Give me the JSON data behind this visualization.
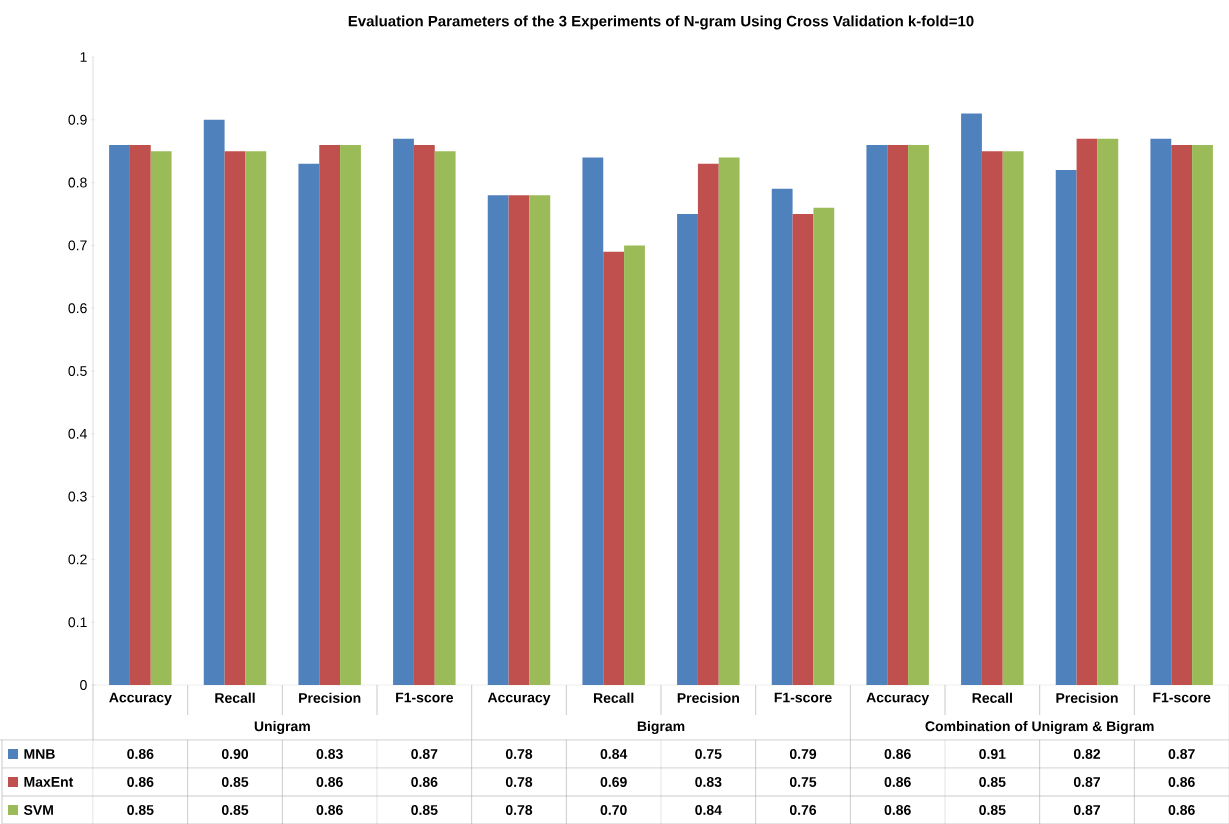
{
  "chart_data": {
    "type": "bar",
    "title": "Evaluation Parameters of the 3 Experiments of N-gram Using Cross Validation k-fold=10",
    "categories": [
      "Accuracy",
      "Recall",
      "Precision",
      "F1-score",
      "Accuracy",
      "Recall",
      "Precision",
      "F1-score",
      "Accuracy",
      "Recall",
      "Precision",
      "F1-score"
    ],
    "annotations": [
      "Unigram",
      "Bigram",
      "Combination of Unigram & Bigram"
    ],
    "series": [
      {
        "name": "MNB",
        "color": "#4f81bd",
        "values": [
          0.86,
          0.9,
          0.83,
          0.87,
          0.78,
          0.84,
          0.75,
          0.79,
          0.86,
          0.91,
          0.82,
          0.87
        ],
        "value_labels": [
          "0.86",
          "0.90",
          "0.83",
          "0.87",
          "0.78",
          "0.84",
          "0.75",
          "0.79",
          "0.86",
          "0.91",
          "0.82",
          "0.87"
        ]
      },
      {
        "name": "MaxEnt",
        "color": "#c0504d",
        "values": [
          0.86,
          0.85,
          0.86,
          0.86,
          0.78,
          0.69,
          0.83,
          0.75,
          0.86,
          0.85,
          0.87,
          0.86
        ],
        "value_labels": [
          "0.86",
          "0.85",
          "0.86",
          "0.86",
          "0.78",
          "0.69",
          "0.83",
          "0.75",
          "0.86",
          "0.85",
          "0.87",
          "0.86"
        ]
      },
      {
        "name": "SVM",
        "color": "#9bbb59",
        "values": [
          0.85,
          0.85,
          0.86,
          0.85,
          0.78,
          0.7,
          0.84,
          0.76,
          0.86,
          0.85,
          0.87,
          0.86
        ],
        "value_labels": [
          "0.85",
          "0.85",
          "0.86",
          "0.85",
          "0.78",
          "0.70",
          "0.84",
          "0.76",
          "0.86",
          "0.85",
          "0.87",
          "0.86"
        ]
      }
    ],
    "ylim": [
      0,
      1
    ],
    "yticks": [
      0,
      0.1,
      0.2,
      0.3,
      0.4,
      0.5,
      0.6,
      0.7,
      0.8,
      0.9,
      1
    ],
    "grid": false,
    "legend": "bottom"
  }
}
